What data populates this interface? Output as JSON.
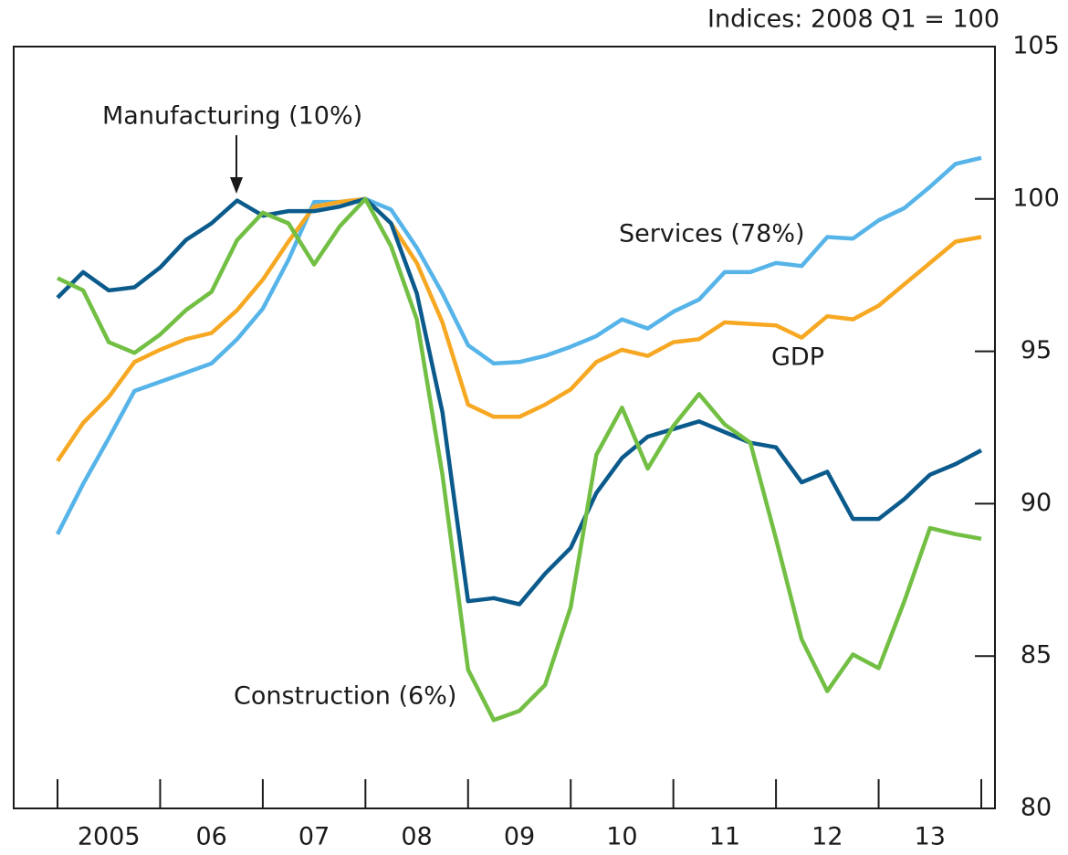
{
  "chart_data": {
    "type": "line",
    "subtitle": "Indices:  2008 Q1 = 100",
    "x": [
      2005,
      2005.25,
      2005.5,
      2005.75,
      2006,
      2006.25,
      2006.5,
      2006.75,
      2007,
      2007.25,
      2007.5,
      2007.75,
      2008,
      2008.25,
      2008.5,
      2008.75,
      2009,
      2009.25,
      2009.5,
      2009.75,
      2010,
      2010.25,
      2010.5,
      2010.75,
      2011,
      2011.25,
      2011.5,
      2011.75,
      2012,
      2012.25,
      2012.5,
      2012.75,
      2013,
      2013.25,
      2013.5,
      2013.75,
      2014
    ],
    "xlim": [
      2005,
      2014
    ],
    "xticks": [
      {
        "value": 2005,
        "label": "2005"
      },
      {
        "value": 2006,
        "label": "06"
      },
      {
        "value": 2007,
        "label": "07"
      },
      {
        "value": 2008,
        "label": "08"
      },
      {
        "value": 2009,
        "label": "09"
      },
      {
        "value": 2010,
        "label": "10"
      },
      {
        "value": 2011,
        "label": "11"
      },
      {
        "value": 2012,
        "label": "12"
      },
      {
        "value": 2013,
        "label": "13"
      }
    ],
    "ylim": [
      80,
      105
    ],
    "yticks": [
      80,
      85,
      90,
      95,
      100,
      105
    ],
    "series": [
      {
        "name": "Services (78%)",
        "color": "#56b4e9",
        "values": [
          89.0,
          90.65,
          92.15,
          93.7,
          94.0,
          94.3,
          94.6,
          95.4,
          96.4,
          98.0,
          99.9,
          99.9,
          100,
          99.65,
          98.4,
          96.9,
          95.2,
          94.6,
          94.65,
          94.85,
          95.15,
          95.5,
          96.05,
          95.75,
          96.3,
          96.7,
          97.6,
          97.6,
          97.9,
          97.8,
          98.75,
          98.7,
          99.3,
          99.7,
          100.4,
          101.15,
          101.35
        ]
      },
      {
        "name": "GDP",
        "color": "#f7a823",
        "values": [
          91.4,
          92.65,
          93.5,
          94.65,
          95.05,
          95.4,
          95.6,
          96.35,
          97.35,
          98.6,
          99.75,
          99.9,
          100,
          99.2,
          97.9,
          95.95,
          93.25,
          92.85,
          92.85,
          93.25,
          93.75,
          94.65,
          95.05,
          94.85,
          95.3,
          95.4,
          95.95,
          95.9,
          95.85,
          95.45,
          96.15,
          96.05,
          96.5,
          97.2,
          97.9,
          98.6,
          98.75
        ]
      },
      {
        "name": "Manufacturing (10%)",
        "color": "#0b5a8c",
        "values": [
          96.76,
          97.6,
          97.0,
          97.1,
          97.75,
          98.65,
          99.2,
          99.95,
          99.45,
          99.6,
          99.6,
          99.75,
          100,
          99.2,
          96.9,
          93.0,
          86.8,
          86.9,
          86.7,
          87.7,
          88.55,
          90.35,
          91.5,
          92.2,
          92.45,
          92.7,
          92.35,
          92.0,
          91.85,
          90.7,
          91.05,
          89.5,
          89.5,
          90.15,
          90.95,
          91.3,
          91.75
        ]
      },
      {
        "name": "Construction (6%)",
        "color": "#72bf44",
        "values": [
          97.4,
          97.0,
          95.3,
          94.95,
          95.55,
          96.35,
          96.95,
          98.65,
          99.55,
          99.2,
          97.85,
          99.1,
          100,
          98.45,
          96.05,
          90.95,
          84.55,
          82.9,
          83.2,
          84.05,
          86.6,
          91.6,
          93.15,
          91.15,
          92.55,
          93.6,
          92.6,
          92.0,
          88.85,
          85.55,
          83.85,
          85.05,
          84.6,
          86.8,
          89.2,
          89.0,
          88.85
        ]
      }
    ]
  }
}
